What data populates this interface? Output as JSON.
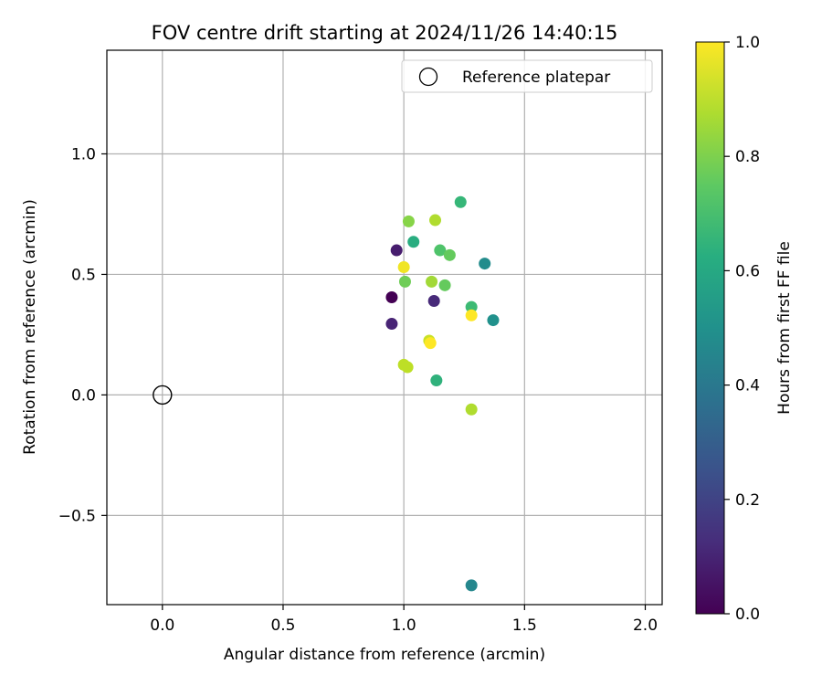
{
  "chart_data": {
    "type": "scatter",
    "title": "FOV centre drift starting at 2024/11/26 14:40:15",
    "xlabel": "Angular distance from reference (arcmin)",
    "ylabel": "Rotation from reference (arcmin)",
    "xlim": [
      -0.23,
      2.07
    ],
    "ylim": [
      -0.87,
      1.43
    ],
    "xticks": [
      0.0,
      0.5,
      1.0,
      1.5,
      2.0
    ],
    "xtick_labels": [
      "0.0",
      "0.5",
      "1.0",
      "1.5",
      "2.0"
    ],
    "yticks": [
      -0.5,
      0.0,
      0.5,
      1.0
    ],
    "ytick_labels": [
      "−0.5",
      "0.0",
      "0.5",
      "1.0"
    ],
    "grid": true,
    "legend": {
      "position": "top-right",
      "entries": [
        "Reference platepar"
      ]
    },
    "reference_point": {
      "x": 0.0,
      "y": 0.0,
      "label": "Reference platepar"
    },
    "colorbar": {
      "label": "Hours from first FF file",
      "range": [
        0.0,
        1.0
      ],
      "ticks": [
        0.0,
        0.2,
        0.4,
        0.6,
        0.8,
        1.0
      ],
      "tick_labels": [
        "0.0",
        "0.2",
        "0.4",
        "0.6",
        "0.8",
        "1.0"
      ],
      "colormap": "viridis"
    },
    "points": [
      {
        "x": 0.95,
        "y": 0.405,
        "c": 0.0
      },
      {
        "x": 0.97,
        "y": 0.6,
        "c": 0.08
      },
      {
        "x": 0.95,
        "y": 0.295,
        "c": 0.1
      },
      {
        "x": 1.125,
        "y": 0.39,
        "c": 0.12
      },
      {
        "x": 1.28,
        "y": -0.79,
        "c": 0.46
      },
      {
        "x": 1.335,
        "y": 0.545,
        "c": 0.48
      },
      {
        "x": 1.37,
        "y": 0.31,
        "c": 0.5
      },
      {
        "x": 1.04,
        "y": 0.635,
        "c": 0.62
      },
      {
        "x": 1.135,
        "y": 0.06,
        "c": 0.64
      },
      {
        "x": 1.235,
        "y": 0.8,
        "c": 0.66
      },
      {
        "x": 1.28,
        "y": 0.365,
        "c": 0.68
      },
      {
        "x": 1.15,
        "y": 0.6,
        "c": 0.72
      },
      {
        "x": 1.19,
        "y": 0.58,
        "c": 0.76
      },
      {
        "x": 1.17,
        "y": 0.455,
        "c": 0.76
      },
      {
        "x": 1.005,
        "y": 0.47,
        "c": 0.78
      },
      {
        "x": 1.02,
        "y": 0.72,
        "c": 0.82
      },
      {
        "x": 1.115,
        "y": 0.47,
        "c": 0.86
      },
      {
        "x": 1.13,
        "y": 0.725,
        "c": 0.88
      },
      {
        "x": 1.28,
        "y": -0.06,
        "c": 0.88
      },
      {
        "x": 1.0,
        "y": 0.125,
        "c": 0.9
      },
      {
        "x": 1.015,
        "y": 0.115,
        "c": 0.9
      },
      {
        "x": 1.105,
        "y": 0.225,
        "c": 0.92
      },
      {
        "x": 1.0,
        "y": 0.53,
        "c": 0.98
      },
      {
        "x": 1.11,
        "y": 0.215,
        "c": 1.0
      },
      {
        "x": 1.28,
        "y": 0.33,
        "c": 1.0
      }
    ]
  }
}
